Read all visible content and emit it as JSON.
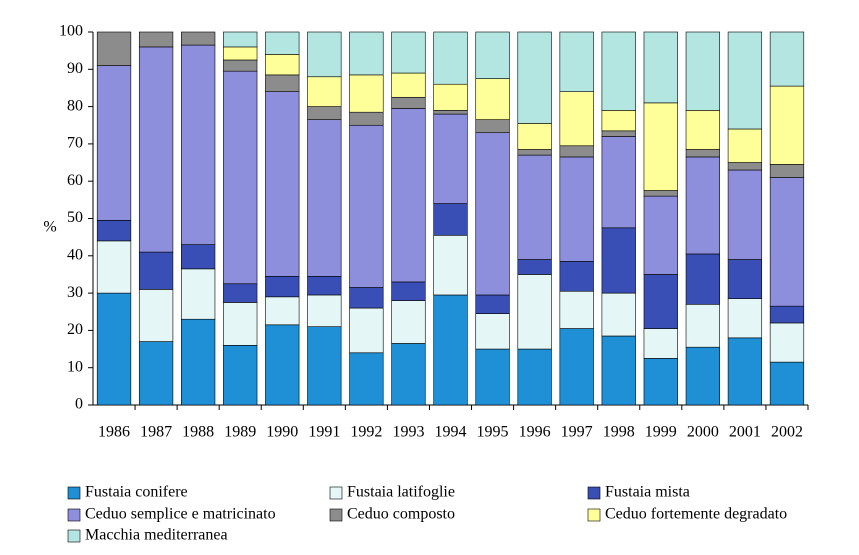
{
  "chart_data": {
    "type": "stacked_bar",
    "y_label": "%",
    "categories": [
      "1986",
      "1987",
      "1988",
      "1989",
      "1990",
      "1991",
      "1992",
      "1993",
      "1994",
      "1995",
      "1996",
      "1997",
      "1998",
      "1999",
      "2000",
      "2001",
      "2002"
    ],
    "series": [
      {
        "name": "Fustaia conifere",
        "color": "#1f8fd6",
        "values": [
          30,
          17,
          23,
          16,
          21.5,
          21,
          14,
          16.5,
          29.5,
          15,
          15,
          20.5,
          18.5,
          12.5,
          15.5,
          18,
          11.5
        ]
      },
      {
        "name": "Fustaia latifoglie",
        "color": "#e4f6f6",
        "values": [
          14,
          14,
          13.5,
          11.5,
          7.5,
          8.5,
          12,
          11.5,
          16,
          9.5,
          20,
          10,
          11.5,
          8,
          11.5,
          10.5,
          10.5
        ]
      },
      {
        "name": "Fustaia mista",
        "color": "#3a4fb5",
        "values": [
          5.5,
          10,
          6.5,
          5,
          5.5,
          5,
          5.5,
          5,
          8.5,
          5,
          4,
          8,
          17.5,
          14.5,
          13.5,
          10.5,
          4.5
        ]
      },
      {
        "name": "Ceduo semplice e matricinato",
        "color": "#8e8fdc",
        "values": [
          41.5,
          55,
          53.5,
          57,
          49.5,
          42,
          43.5,
          46.5,
          24,
          43.5,
          28,
          28,
          24.5,
          21,
          26,
          24,
          34.5
        ]
      },
      {
        "name": "Ceduo composto",
        "color": "#8c8c8c",
        "values": [
          9,
          4,
          3.5,
          3,
          4.5,
          3.5,
          3.5,
          3,
          1,
          3.5,
          1.5,
          3,
          1.5,
          1.5,
          2,
          2,
          3.5
        ]
      },
      {
        "name": "Ceduo fortemente degradato",
        "color": "#ffff99",
        "values": [
          0,
          0,
          0,
          3.5,
          5.5,
          8,
          10,
          6.5,
          7,
          11,
          7,
          14.5,
          5.5,
          23.5,
          10.5,
          9,
          21
        ]
      },
      {
        "name": "Macchia mediterranea",
        "color": "#b3e6e0",
        "values": [
          0,
          0,
          0,
          4,
          6,
          12,
          11.5,
          11,
          14,
          12.5,
          24.5,
          16,
          21,
          19,
          21,
          26,
          14.5
        ]
      }
    ],
    "ylim": [
      0,
      100
    ],
    "yticks": [
      0,
      10,
      20,
      30,
      40,
      50,
      60,
      70,
      80,
      90,
      100
    ]
  }
}
